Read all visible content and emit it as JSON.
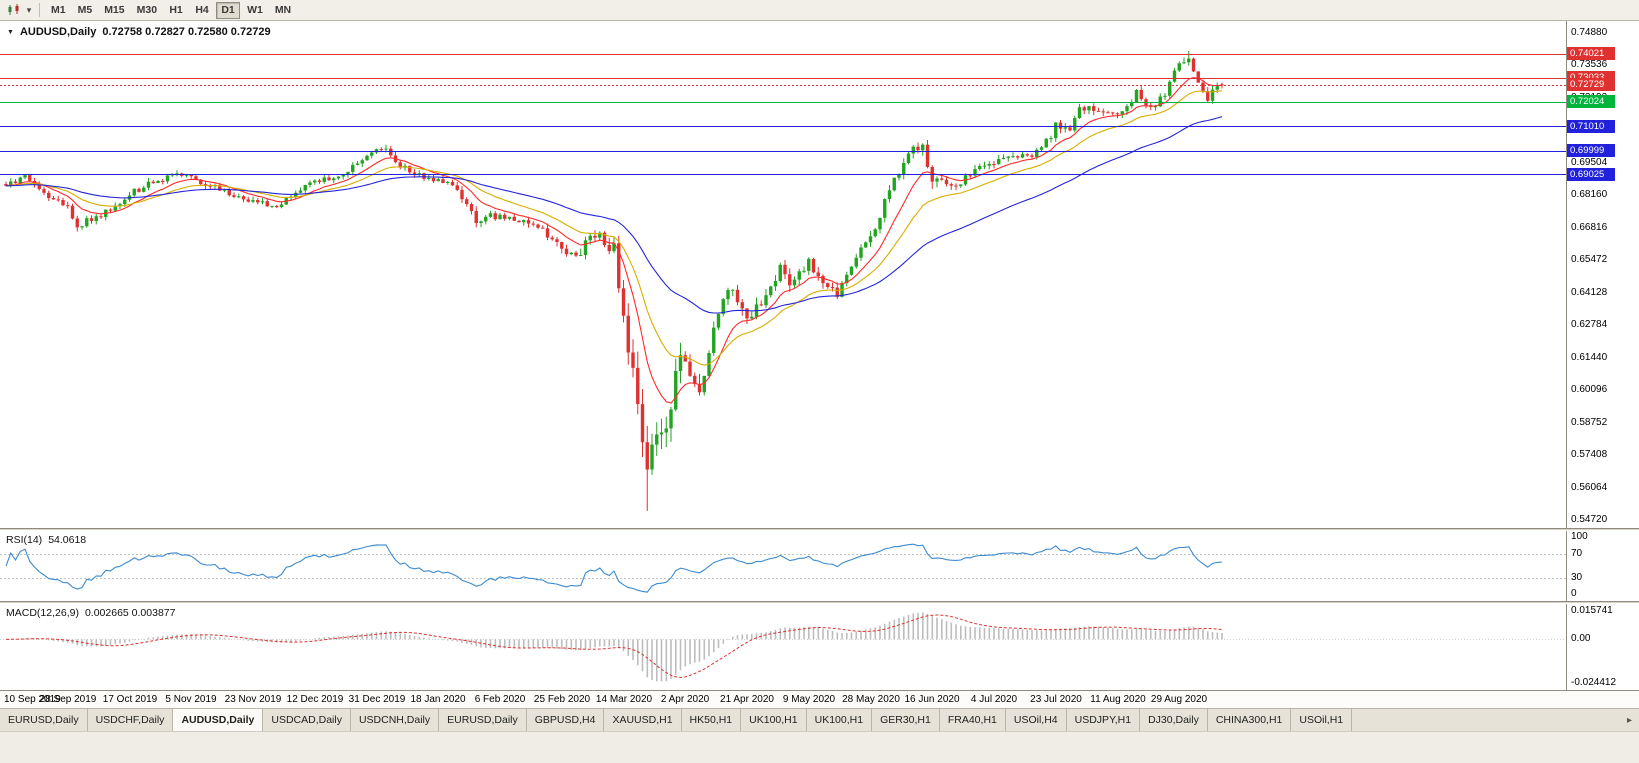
{
  "toolbar": {
    "timeframes": [
      "M1",
      "M5",
      "M15",
      "M30",
      "H1",
      "H4",
      "D1",
      "W1",
      "MN"
    ],
    "active_timeframe": "D1"
  },
  "chart": {
    "title": "AUDUSD,Daily",
    "ohlc": "0.72758 0.72827 0.72580 0.72729"
  },
  "rsi_panel": {
    "name": "RSI(14)",
    "value": "54.0618"
  },
  "macd_panel": {
    "name": "MACD(12,26,9)",
    "values": "0.002665 0.003877"
  },
  "tabs": {
    "active_index": 2,
    "items": [
      "EURUSD,Daily",
      "USDCHF,Daily",
      "AUDUSD,Daily",
      "USDCAD,Daily",
      "USDCNH,Daily",
      "EURUSD,Daily",
      "GBPUSD,H4",
      "XAUUSD,H1",
      "HK50,H1",
      "UK100,H1",
      "UK100,H1",
      "GER30,H1",
      "FRA40,H1",
      "USOil,H4",
      "USDJPY,H1",
      "DJ30,Daily",
      "CHINA300,H1",
      "USOil,H1"
    ]
  },
  "chart_data": {
    "type": "candlestick",
    "symbol": "AUDUSD",
    "timeframe": "Daily",
    "open": "0.72758",
    "high": "0.72827",
    "low": "0.72580",
    "close": "0.72729",
    "price_max": 0.7488,
    "price_min": 0.5472,
    "y_ticks": [
      "0.74880",
      "0.73536",
      "0.72192",
      "0.70848",
      "0.69504",
      "0.68160",
      "0.66816",
      "0.65472",
      "0.64128",
      "0.62784",
      "0.61440",
      "0.60096",
      "0.58752",
      "0.57408",
      "0.56064",
      "0.54720"
    ],
    "x_labels": [
      {
        "bar": 0,
        "text": "10 Sep 2019"
      },
      {
        "bar": 13,
        "text": "28 Sep 2019"
      },
      {
        "bar": 26,
        "text": "17 Oct 2019"
      },
      {
        "bar": 39,
        "text": "5 Nov 2019"
      },
      {
        "bar": 52,
        "text": "23 Nov 2019"
      },
      {
        "bar": 65,
        "text": "12 Dec 2019"
      },
      {
        "bar": 78,
        "text": "31 Dec 2019"
      },
      {
        "bar": 91,
        "text": "18 Jan 2020"
      },
      {
        "bar": 104,
        "text": "6 Feb 2020"
      },
      {
        "bar": 117,
        "text": "25 Feb 2020"
      },
      {
        "bar": 130,
        "text": "14 Mar 2020"
      },
      {
        "bar": 143,
        "text": "2 Apr 2020"
      },
      {
        "bar": 156,
        "text": "21 Apr 2020"
      },
      {
        "bar": 169,
        "text": "9 May 2020"
      },
      {
        "bar": 182,
        "text": "28 May 2020"
      },
      {
        "bar": 195,
        "text": "16 Jun 2020"
      },
      {
        "bar": 208,
        "text": "4 Jul 2020"
      },
      {
        "bar": 221,
        "text": "23 Jul 2020"
      },
      {
        "bar": 234,
        "text": "11 Aug 2020"
      },
      {
        "bar": 247,
        "text": "29 Aug 2020"
      }
    ],
    "levels": [
      {
        "price": 0.74021,
        "label": "0.74021",
        "color": "#e03131",
        "style": "solid"
      },
      {
        "price": 0.73033,
        "label": "0.73033",
        "color": "#e03131",
        "style": "solid"
      },
      {
        "price": 0.72729,
        "label": "0.72729",
        "color": "#e03131",
        "style": "dashed"
      },
      {
        "price": 0.72024,
        "label": "0.72024",
        "color": "#00b43c",
        "style": "solid"
      },
      {
        "price": 0.7101,
        "label": "0.71010",
        "color": "#2222dd",
        "style": "solid"
      },
      {
        "price": 0.69999,
        "label": "0.69999",
        "color": "#2222dd",
        "style": "solid"
      },
      {
        "price": 0.69025,
        "label": "0.69025",
        "color": "#2222dd",
        "style": "solid"
      }
    ],
    "moving_averages": [
      {
        "period": 10,
        "color": "#ff2a2a"
      },
      {
        "period": 21,
        "color": "#d9ad00"
      },
      {
        "period": 50,
        "color": "#2626d9"
      }
    ],
    "colors": {
      "up": "#22a322",
      "down": "#e03131",
      "rsi": "#3c8bd0",
      "macd_hist": "#bdbdbd",
      "macd_signal": "#e03131",
      "background": "#ffffff",
      "axis_text": "#000000"
    },
    "rsi_axis": [
      "100",
      "70",
      "30",
      "0"
    ],
    "rsi_levels": [
      70,
      30
    ],
    "macd_axis": {
      "max": "0.015741",
      "zero": "0.00",
      "min": "-0.024412"
    },
    "bars_total": 257,
    "anchors": [
      [
        0,
        0.686,
        0.003
      ],
      [
        4,
        0.6888,
        0.003
      ],
      [
        9,
        0.6808,
        0.003
      ],
      [
        13,
        0.6772,
        0.003
      ],
      [
        15,
        0.6688,
        0.0038
      ],
      [
        18,
        0.6718,
        0.0032
      ],
      [
        23,
        0.6762,
        0.0028
      ],
      [
        26,
        0.6822,
        0.0028
      ],
      [
        31,
        0.6872,
        0.0028
      ],
      [
        37,
        0.6905,
        0.0028
      ],
      [
        41,
        0.6868,
        0.0028
      ],
      [
        46,
        0.6832,
        0.0028
      ],
      [
        52,
        0.6792,
        0.0028
      ],
      [
        57,
        0.6766,
        0.0028
      ],
      [
        61,
        0.6822,
        0.0028
      ],
      [
        65,
        0.6876,
        0.0028
      ],
      [
        70,
        0.6896,
        0.0028
      ],
      [
        74,
        0.6942,
        0.0028
      ],
      [
        78,
        0.7012,
        0.003
      ],
      [
        80,
        0.6998,
        0.003
      ],
      [
        83,
        0.6936,
        0.0028
      ],
      [
        87,
        0.6896,
        0.0028
      ],
      [
        91,
        0.6876,
        0.0028
      ],
      [
        95,
        0.6846,
        0.0028
      ],
      [
        99,
        0.6712,
        0.004
      ],
      [
        104,
        0.6736,
        0.0034
      ],
      [
        108,
        0.6716,
        0.003
      ],
      [
        112,
        0.6682,
        0.0032
      ],
      [
        116,
        0.6612,
        0.004
      ],
      [
        120,
        0.6552,
        0.005
      ],
      [
        122,
        0.6626,
        0.005
      ],
      [
        125,
        0.6642,
        0.0048
      ],
      [
        128,
        0.6586,
        0.0075
      ],
      [
        130,
        0.6292,
        0.0115
      ],
      [
        132,
        0.6122,
        0.0135
      ],
      [
        134,
        0.5792,
        0.0165
      ],
      [
        135,
        0.5748,
        0.02
      ],
      [
        136,
        0.5802,
        0.015
      ],
      [
        138,
        0.5838,
        0.012
      ],
      [
        140,
        0.5962,
        0.011
      ],
      [
        142,
        0.6152,
        0.01
      ],
      [
        144,
        0.6076,
        0.009
      ],
      [
        146,
        0.6002,
        0.0082
      ],
      [
        148,
        0.6172,
        0.0075
      ],
      [
        150,
        0.6342,
        0.007
      ],
      [
        153,
        0.6442,
        0.0062
      ],
      [
        156,
        0.6302,
        0.0058
      ],
      [
        159,
        0.6372,
        0.0054
      ],
      [
        163,
        0.6512,
        0.0052
      ],
      [
        165,
        0.6432,
        0.005
      ],
      [
        169,
        0.6532,
        0.0046
      ],
      [
        172,
        0.6442,
        0.0044
      ],
      [
        175,
        0.6412,
        0.0044
      ],
      [
        179,
        0.6572,
        0.004
      ],
      [
        182,
        0.6632,
        0.004
      ],
      [
        185,
        0.6786,
        0.0044
      ],
      [
        188,
        0.6922,
        0.0044
      ],
      [
        191,
        0.7002,
        0.0044
      ],
      [
        193,
        0.7042,
        0.005
      ],
      [
        195,
        0.6852,
        0.0058
      ],
      [
        197,
        0.6892,
        0.0048
      ],
      [
        200,
        0.6862,
        0.004
      ],
      [
        203,
        0.6906,
        0.0034
      ],
      [
        208,
        0.6946,
        0.0034
      ],
      [
        212,
        0.6992,
        0.0034
      ],
      [
        215,
        0.6972,
        0.0032
      ],
      [
        218,
        0.7002,
        0.0032
      ],
      [
        221,
        0.7102,
        0.0038
      ],
      [
        224,
        0.7098,
        0.0034
      ],
      [
        226,
        0.7188,
        0.0034
      ],
      [
        230,
        0.7158,
        0.0032
      ],
      [
        234,
        0.7146,
        0.0032
      ],
      [
        238,
        0.7238,
        0.0032
      ],
      [
        241,
        0.7172,
        0.0032
      ],
      [
        244,
        0.7232,
        0.0032
      ],
      [
        247,
        0.7362,
        0.0038
      ],
      [
        249,
        0.7378,
        0.004
      ],
      [
        251,
        0.7292,
        0.0038
      ],
      [
        253,
        0.7216,
        0.0036
      ],
      [
        255,
        0.7278,
        0.0032
      ],
      [
        256,
        0.7273,
        0.0028
      ]
    ],
    "overrides": {
      "135": {
        "l": 0.551
      },
      "249": {
        "h": 0.7414
      },
      "256": {
        "o": 0.72758,
        "h": 0.72827,
        "l": 0.7258,
        "c": 0.72729
      }
    }
  }
}
